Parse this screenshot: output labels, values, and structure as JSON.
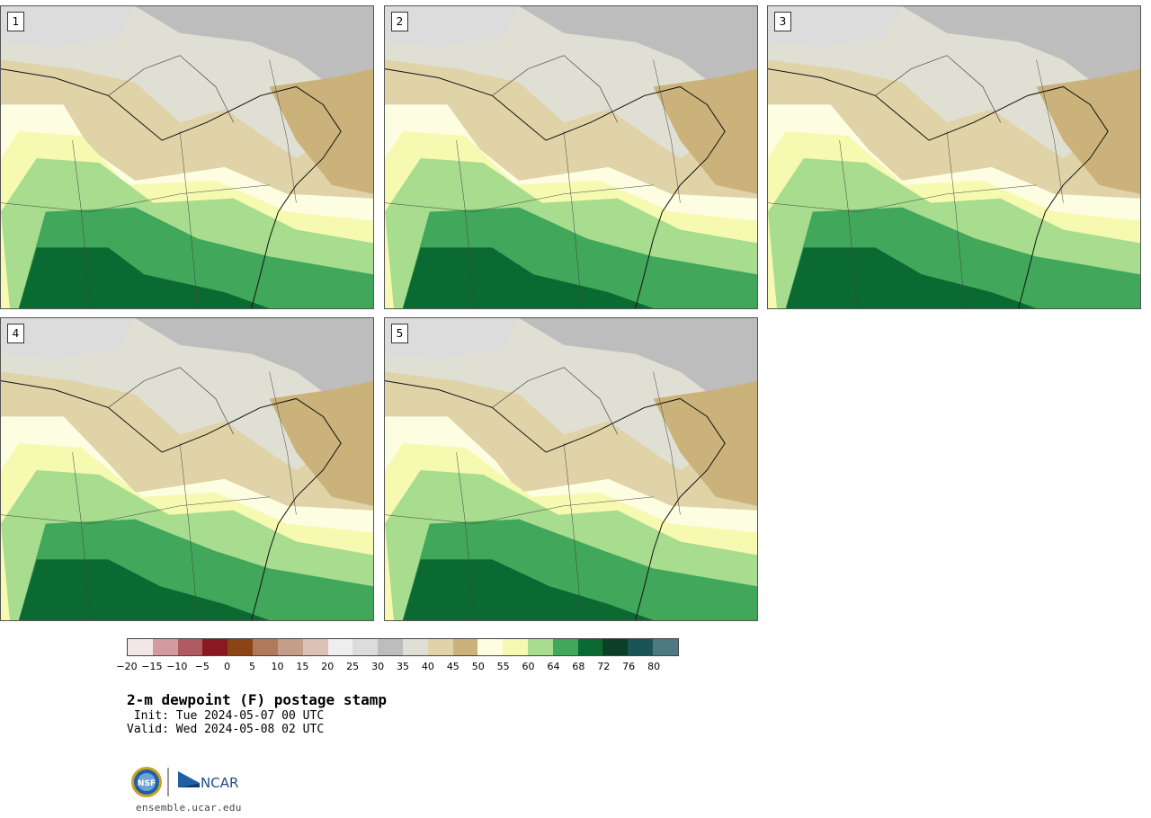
{
  "panels": [
    {
      "label": "1"
    },
    {
      "label": "2"
    },
    {
      "label": "3"
    },
    {
      "label": "4"
    },
    {
      "label": "5"
    }
  ],
  "colorbar": {
    "colors": [
      "#f3e6e6",
      "#d49a9f",
      "#b05a62",
      "#8b1820",
      "#8a4416",
      "#b0795a",
      "#c69e88",
      "#dcc2b4",
      "#eeeeee",
      "#dcdcdc",
      "#bdbdbd",
      "#e0dfd4",
      "#dfd3a7",
      "#cbb27a",
      "#fdfde2",
      "#f6f9b0",
      "#a8dc8e",
      "#41a75a",
      "#0b6a32",
      "#0b3f26",
      "#1b5457",
      "#4d7a80"
    ],
    "tick_labels": [
      "−20",
      "−15",
      "−10",
      "−5",
      "0",
      "5",
      "10",
      "15",
      "20",
      "25",
      "30",
      "35",
      "40",
      "45",
      "50",
      "55",
      "60",
      "64",
      "68",
      "72",
      "76",
      "80"
    ]
  },
  "title": "2-m dewpoint (F) postage stamp",
  "init_line": " Init: Tue 2024-05-07 00 UTC",
  "valid_line": "Valid: Wed 2024-05-08 02 UTC",
  "logo": {
    "left": "NSF",
    "right": "NCAR"
  },
  "url": "ensemble.ucar.edu"
}
